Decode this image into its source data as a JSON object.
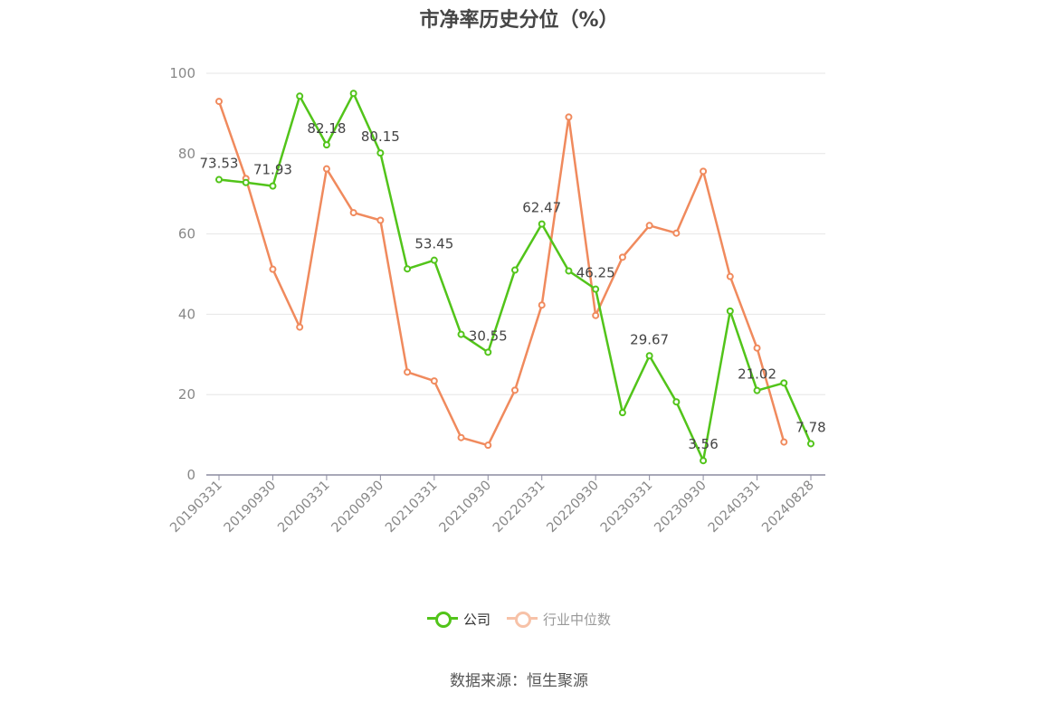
{
  "chart_data": {
    "type": "line",
    "title": "市净率历史分位（%）",
    "ylim": [
      0,
      100
    ],
    "yticks": [
      0,
      20,
      40,
      60,
      80,
      100
    ],
    "grid": true,
    "legend_position": "bottom",
    "x": [
      "20190331",
      "20190630",
      "20190930",
      "20191231",
      "20200331",
      "20200630",
      "20200930",
      "20201231",
      "20210331",
      "20210630",
      "20210930",
      "20211231",
      "20220331",
      "20220630",
      "20220930",
      "20221231",
      "20230331",
      "20230630",
      "20230930",
      "20231231",
      "20240331",
      "20240630",
      "20240828"
    ],
    "xtick_labels": [
      "20190331",
      "20190930",
      "20200331",
      "20200930",
      "20210331",
      "20210930",
      "20220331",
      "20220930",
      "20230331",
      "20230930",
      "20240331",
      "20240828"
    ],
    "series": [
      {
        "name": "公司",
        "color": "#52c41a",
        "values": [
          73.53,
          72.8,
          71.93,
          94.3,
          82.18,
          95.0,
          80.15,
          51.3,
          53.45,
          35.0,
          30.55,
          51.0,
          62.47,
          50.8,
          46.25,
          15.5,
          29.67,
          18.2,
          3.56,
          40.8,
          21.02,
          22.9,
          7.78
        ],
        "labels": {
          "0": "73.53",
          "2": "71.93",
          "4": "82.18",
          "6": "80.15",
          "8": "53.45",
          "10": "30.55",
          "12": "62.47",
          "14": "46.25",
          "16": "29.67",
          "18": "3.56",
          "20": "21.02",
          "22": "7.78"
        }
      },
      {
        "name": "行业中位数",
        "color": "#f08a5d",
        "values": [
          93.0,
          73.8,
          51.2,
          36.8,
          76.2,
          65.3,
          63.4,
          25.6,
          23.4,
          9.3,
          7.4,
          21.1,
          42.3,
          89.1,
          39.7,
          54.2,
          62.1,
          60.2,
          75.6,
          49.4,
          31.6,
          8.2,
          null
        ]
      }
    ]
  },
  "source_text": "数据来源：恒生聚源"
}
